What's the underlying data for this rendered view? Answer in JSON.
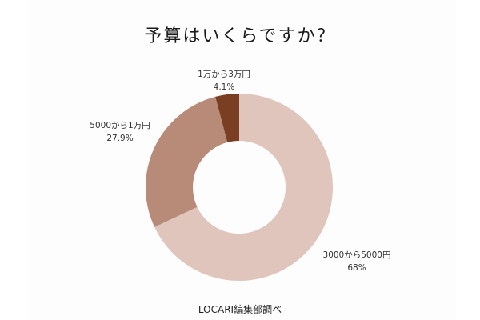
{
  "chart_data": {
    "type": "pie",
    "subtype": "donut",
    "title": "予算はいくらですか？",
    "categories": [
      "3000から5000円",
      "5000から1万円",
      "1万から3万円"
    ],
    "values": [
      68,
      27.9,
      4.1
    ],
    "value_labels": [
      "68%",
      "27.9%",
      "4.1%"
    ],
    "colors": [
      "#dfc5bb",
      "#b88a78",
      "#7a3f22"
    ],
    "start_angle": "12 o'clock, clockwise",
    "source": "LOCARI編集部調べ",
    "legend": "none (labels placed next to slices)"
  },
  "labels": {
    "s0": {
      "name": "3000から5000円",
      "pct": "68%"
    },
    "s1": {
      "name": "5000から1万円",
      "pct": "27.9%"
    },
    "s2": {
      "name": "1万から3万円",
      "pct": "4.1%"
    }
  }
}
